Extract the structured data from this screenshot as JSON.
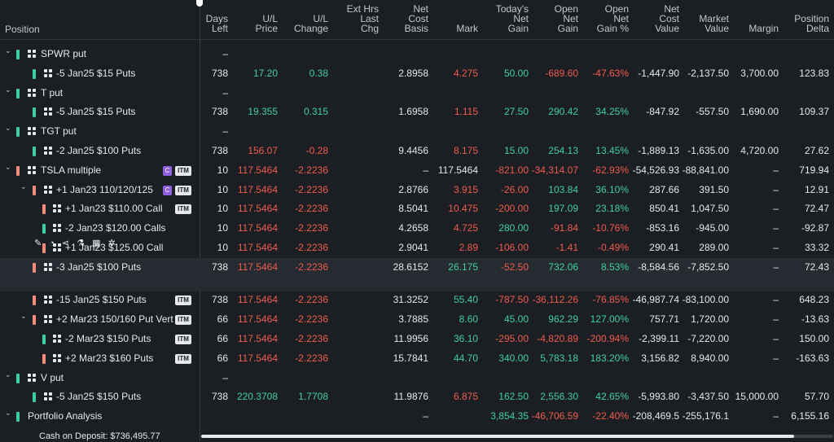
{
  "header": {
    "position": "Position",
    "columns": [
      {
        "key": "days",
        "label": "Days\nLeft"
      },
      {
        "key": "ulp",
        "label": "U/L\nPrice"
      },
      {
        "key": "ulc",
        "label": "U/L\nChange"
      },
      {
        "key": "ext",
        "label": "Ext Hrs\nLast\nChg"
      },
      {
        "key": "ncb",
        "label": "Net\nCost\nBasis"
      },
      {
        "key": "mark",
        "label": "Mark"
      },
      {
        "key": "today",
        "label": "Today's\nNet\nGain"
      },
      {
        "key": "ong",
        "label": "Open\nNet\nGain"
      },
      {
        "key": "ongp",
        "label": "Open\nNet\nGain %"
      },
      {
        "key": "ncv",
        "label": "Net\nCost\nValue"
      },
      {
        "key": "mv",
        "label": "Market\nValue"
      },
      {
        "key": "margin",
        "label": "Margin"
      },
      {
        "key": "pd",
        "label": "Position\nDelta"
      }
    ]
  },
  "colors": {
    "green": "#3ecfa0",
    "red": "#ef5b4c",
    "greenbar": "#3ecfa0",
    "salmonbar": "#f28c7a",
    "purple": "#8f5fe0"
  },
  "rows": [
    {
      "name": "SPWR put",
      "level": 0,
      "chevron": "v",
      "bar": "green",
      "grid": true,
      "days": "–"
    },
    {
      "name": "-5 Jan25 $15 Puts",
      "level": 1,
      "bar": "green",
      "grid": true,
      "days": "738",
      "ulp": "17.20",
      "ulp_c": "g",
      "ulc": "0.38",
      "ulc_c": "g",
      "ncb": "2.8958",
      "mark": "4.275",
      "mark_c": "r",
      "today": "50.00",
      "today_c": "g",
      "ong": "-689.60",
      "ong_c": "r",
      "ongp": "-47.63%",
      "ongp_c": "r",
      "ncv": "-1,447.90",
      "mv": "-2,137.50",
      "margin": "3,700.00",
      "pd": "123.83"
    },
    {
      "name": "T put",
      "level": 0,
      "chevron": "v",
      "bar": "green",
      "grid": true,
      "days": "–"
    },
    {
      "name": "-5 Jan25 $15 Puts",
      "level": 1,
      "bar": "green",
      "grid": true,
      "days": "738",
      "ulp": "19.355",
      "ulp_c": "g",
      "ulc": "0.315",
      "ulc_c": "g",
      "ncb": "1.6958",
      "mark": "1.115",
      "mark_c": "r",
      "today": "27.50",
      "today_c": "g",
      "ong": "290.42",
      "ong_c": "g",
      "ongp": "34.25%",
      "ongp_c": "g",
      "ncv": "-847.92",
      "mv": "-557.50",
      "margin": "1,690.00",
      "pd": "109.37"
    },
    {
      "name": "TGT put",
      "level": 0,
      "chevron": "v",
      "bar": "green",
      "grid": true,
      "days": "–"
    },
    {
      "name": "-2 Jan25 $100 Puts",
      "level": 1,
      "bar": "green",
      "grid": true,
      "days": "738",
      "ulp": "156.07",
      "ulp_c": "r",
      "ulc": "-0.28",
      "ulc_c": "r",
      "ncb": "9.4456",
      "mark": "8.175",
      "mark_c": "r",
      "today": "15.00",
      "today_c": "g",
      "ong": "254.13",
      "ong_c": "g",
      "ongp": "13.45%",
      "ongp_c": "g",
      "ncv": "-1,889.13",
      "mv": "-1,635.00",
      "margin": "4,720.00",
      "pd": "27.62"
    },
    {
      "name": "TSLA multiple",
      "level": 0,
      "chevron": "v",
      "bar": "salmon",
      "grid": true,
      "badges": [
        "C",
        "ITM"
      ],
      "days": "10",
      "ulp": "117.5464",
      "ulp_c": "r",
      "ulc": "-2.2236",
      "ulc_c": "r",
      "ncb": "–",
      "mark": "117.5464",
      "mark_c": "w",
      "today": "-821.00",
      "today_c": "r",
      "ong": "-34,314.07",
      "ong_c": "r",
      "ongp": "-62.93%",
      "ongp_c": "r",
      "ncv": "-54,526.93",
      "mv": "-88,841.00",
      "margin": "–",
      "pd": "719.94"
    },
    {
      "name": "+1 Jan23 110/120/125 C",
      "level": 1,
      "chevron": "v",
      "bar": "salmon",
      "grid": true,
      "badges": [
        "C",
        "ITM"
      ],
      "days": "10",
      "ulp": "117.5464",
      "ulp_c": "r",
      "ulc": "-2.2236",
      "ulc_c": "r",
      "ncb": "2.8766",
      "mark": "3.915",
      "mark_c": "r",
      "today": "-26.00",
      "today_c": "r",
      "ong": "103.84",
      "ong_c": "g",
      "ongp": "36.10%",
      "ongp_c": "g",
      "ncv": "287.66",
      "mv": "391.50",
      "margin": "–",
      "pd": "12.91"
    },
    {
      "name": "+1 Jan23 $110.00 Call",
      "level": 2,
      "bar": "salmon",
      "grid": true,
      "badges": [
        "ITM"
      ],
      "days": "10",
      "ulp": "117.5464",
      "ulp_c": "r",
      "ulc": "-2.2236",
      "ulc_c": "r",
      "ncb": "8.5041",
      "mark": "10.475",
      "mark_c": "r",
      "today": "-200.00",
      "today_c": "r",
      "ong": "197.09",
      "ong_c": "g",
      "ongp": "23.18%",
      "ongp_c": "g",
      "ncv": "850.41",
      "mv": "1,047.50",
      "margin": "–",
      "pd": "72.47"
    },
    {
      "name": "-2 Jan23 $120.00 Calls",
      "level": 2,
      "bar": "green",
      "grid": true,
      "days": "10",
      "ulp": "117.5464",
      "ulp_c": "r",
      "ulc": "-2.2236",
      "ulc_c": "r",
      "ncb": "4.2658",
      "mark": "4.725",
      "mark_c": "r",
      "today": "280.00",
      "today_c": "g",
      "ong": "-91.84",
      "ong_c": "r",
      "ongp": "-10.76%",
      "ongp_c": "r",
      "ncv": "-853.16",
      "mv": "-945.00",
      "margin": "–",
      "pd": "-92.87"
    },
    {
      "name": "+1 Jan23 $125.00 Call",
      "level": 2,
      "bar": "salmon",
      "grid": true,
      "days": "10",
      "ulp": "117.5464",
      "ulp_c": "r",
      "ulc": "-2.2236",
      "ulc_c": "r",
      "ncb": "2.9041",
      "mark": "2.89",
      "mark_c": "r",
      "today": "-106.00",
      "today_c": "r",
      "ong": "-1.41",
      "ong_c": "r",
      "ongp": "-0.49%",
      "ongp_c": "r",
      "ncv": "290.41",
      "mv": "289.00",
      "margin": "–",
      "pd": "33.32"
    },
    {
      "name": "-3 Jan25 $100 Puts",
      "level": 1,
      "bar": "salmon",
      "grid": true,
      "highlight": true,
      "days": "738",
      "ulp": "117.5464",
      "ulp_c": "r",
      "ulc": "-2.2236",
      "ulc_c": "r",
      "ncb": "28.6152",
      "mark": "26.175",
      "mark_c": "g",
      "today": "-52.50",
      "today_c": "r",
      "ong": "732.06",
      "ong_c": "g",
      "ongp": "8.53%",
      "ongp_c": "g",
      "ncv": "-8,584.56",
      "mv": "-7,852.50",
      "margin": "–",
      "pd": "72.43"
    },
    {
      "name": "-15 Jan25 $150 Puts",
      "level": 1,
      "bar": "salmon",
      "grid": true,
      "badges": [
        "ITM"
      ],
      "days": "738",
      "ulp": "117.5464",
      "ulp_c": "r",
      "ulc": "-2.2236",
      "ulc_c": "r",
      "ncb": "31.3252",
      "mark": "55.40",
      "mark_c": "g",
      "today": "-787.50",
      "today_c": "r",
      "ong": "-36,112.26",
      "ong_c": "r",
      "ongp": "-76.85%",
      "ongp_c": "r",
      "ncv": "-46,987.74",
      "mv": "-83,100.00",
      "margin": "–",
      "pd": "648.23"
    },
    {
      "name": "+2 Mar23 150/160 Put Vert",
      "level": 1,
      "chevron": "v",
      "bar": "salmon",
      "grid": true,
      "badges": [
        "ITM"
      ],
      "days": "66",
      "ulp": "117.5464",
      "ulp_c": "r",
      "ulc": "-2.2236",
      "ulc_c": "r",
      "ncb": "3.7885",
      "mark": "8.60",
      "mark_c": "g",
      "today": "45.00",
      "today_c": "g",
      "ong": "962.29",
      "ong_c": "g",
      "ongp": "127.00%",
      "ongp_c": "g",
      "ncv": "757.71",
      "mv": "1,720.00",
      "margin": "–",
      "pd": "-13.63"
    },
    {
      "name": "-2 Mar23 $150 Puts",
      "level": 2,
      "bar": "green",
      "grid": true,
      "badges": [
        "ITM"
      ],
      "days": "66",
      "ulp": "117.5464",
      "ulp_c": "r",
      "ulc": "-2.2236",
      "ulc_c": "r",
      "ncb": "11.9956",
      "mark": "36.10",
      "mark_c": "g",
      "today": "-295.00",
      "today_c": "r",
      "ong": "-4,820.89",
      "ong_c": "r",
      "ongp": "-200.94%",
      "ongp_c": "r",
      "ncv": "-2,399.11",
      "mv": "-7,220.00",
      "margin": "–",
      "pd": "150.00"
    },
    {
      "name": "+2 Mar23 $160 Puts",
      "level": 2,
      "bar": "salmon",
      "grid": true,
      "badges": [
        "ITM"
      ],
      "days": "66",
      "ulp": "117.5464",
      "ulp_c": "r",
      "ulc": "-2.2236",
      "ulc_c": "r",
      "ncb": "15.7841",
      "mark": "44.70",
      "mark_c": "g",
      "today": "340.00",
      "today_c": "g",
      "ong": "5,783.18",
      "ong_c": "g",
      "ongp": "183.20%",
      "ongp_c": "g",
      "ncv": "3,156.82",
      "mv": "8,940.00",
      "margin": "–",
      "pd": "-163.63"
    },
    {
      "name": "V put",
      "level": 0,
      "chevron": "v",
      "bar": "green",
      "grid": true,
      "days": "–"
    },
    {
      "name": "-5 Jan25 $150 Puts",
      "level": 1,
      "bar": "green",
      "grid": true,
      "days": "738",
      "ulp": "220.3708",
      "ulp_c": "g",
      "ulc": "1.7708",
      "ulc_c": "g",
      "ncb": "11.9876",
      "mark": "6.875",
      "mark_c": "r",
      "today": "162.50",
      "today_c": "g",
      "ong": "2,556.30",
      "ong_c": "g",
      "ongp": "42.65%",
      "ongp_c": "g",
      "ncv": "-5,993.80",
      "mv": "-3,437.50",
      "margin": "15,000.00",
      "pd": "57.70"
    },
    {
      "name": "Portfolio Analysis",
      "level": 0,
      "chevron": "v",
      "bar": "green",
      "grid": false,
      "ncb": "–",
      "today": "3,854.35",
      "today_c": "g",
      "ong": "-46,706.59",
      "ong_c": "r",
      "ongp": "-22.40%",
      "ongp_c": "r",
      "ncv": "-208,469.5",
      "mv": "-255,176.1",
      "margin": "–",
      "pd": "6,155.16"
    }
  ],
  "tools_row_icons": [
    "wrench-icon",
    "gauge-icon",
    "share-icon",
    "flask-icon",
    "grid-icon",
    "settings-icon"
  ],
  "tools_glyphs": "✎ ◔ ⋖ ⚗ ▦ ✲",
  "cash_label": "Cash on Deposit: $736,495.77"
}
